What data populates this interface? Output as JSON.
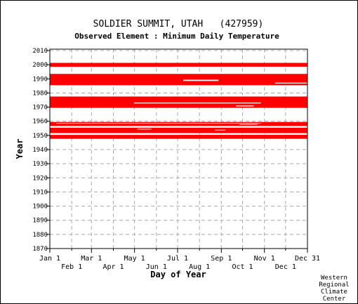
{
  "chart_data": {
    "type": "bar",
    "title": "SOLDIER SUMMIT, UTAH   (427959)",
    "subtitle": "Observed Element : Minimum Daily Temperature",
    "xlabel": "Day of Year",
    "ylabel": "Year",
    "xlim": [
      1,
      366
    ],
    "ylim": [
      1870,
      2011
    ],
    "x_ticks_top": [
      {
        "label": "Jan 1",
        "day": 1
      },
      {
        "label": "Mar 1",
        "day": 60
      },
      {
        "label": "May 1",
        "day": 121
      },
      {
        "label": "Jul 1",
        "day": 182
      },
      {
        "label": "Sep 1",
        "day": 244
      },
      {
        "label": "Nov 1",
        "day": 305
      },
      {
        "label": "Dec 31",
        "day": 366
      }
    ],
    "x_ticks_bottom": [
      {
        "label": "Feb 1",
        "day": 32
      },
      {
        "label": "Apr 1",
        "day": 91
      },
      {
        "label": "Jun 1",
        "day": 152
      },
      {
        "label": "Aug 1",
        "day": 213
      },
      {
        "label": "Oct 1",
        "day": 274
      },
      {
        "label": "Dec 1",
        "day": 335
      }
    ],
    "y_ticks": [
      1870,
      1880,
      1890,
      1900,
      1910,
      1920,
      1930,
      1940,
      1950,
      1960,
      1970,
      1980,
      1990,
      2000,
      2010
    ],
    "grid": true,
    "mark_color": "#ff0000",
    "observed_periods": [
      {
        "y0": 1998.5,
        "y1": 2001.3,
        "d0": 1,
        "d1": 366
      },
      {
        "y0": 1985.5,
        "y1": 1993.5,
        "d0": 1,
        "d1": 366
      },
      {
        "y0": 1969.5,
        "y1": 1977.5,
        "d0": 1,
        "d1": 366
      },
      {
        "y0": 1956.6,
        "y1": 1959.5,
        "d0": 1,
        "d1": 366
      },
      {
        "y0": 1951.6,
        "y1": 1955.5,
        "d0": 1,
        "d1": 366
      },
      {
        "y0": 1947.6,
        "y1": 1950.4,
        "d0": 1,
        "d1": 366
      }
    ],
    "missing_periods": [
      {
        "y0": 1993.7,
        "y1": 1994.6,
        "d0": 22,
        "d1": 366
      },
      {
        "y0": 1998.0,
        "y1": 1998.6,
        "d0": 175,
        "d1": 366
      },
      {
        "y0": 1988.5,
        "y1": 1989.4,
        "d0": 190,
        "d1": 240
      },
      {
        "y0": 1986.7,
        "y1": 1987.3,
        "d0": 320,
        "d1": 366
      },
      {
        "y0": 1977.6,
        "y1": 1978.4,
        "d0": 1,
        "d1": 366
      },
      {
        "y0": 1972.6,
        "y1": 1973.2,
        "d0": 120,
        "d1": 300
      },
      {
        "y0": 1970.5,
        "y1": 1971.1,
        "d0": 265,
        "d1": 290
      },
      {
        "y0": 1958.3,
        "y1": 1958.7,
        "d0": 10,
        "d1": 300
      },
      {
        "y0": 1957.6,
        "y1": 1958.0,
        "d0": 270,
        "d1": 295
      },
      {
        "y0": 1955.5,
        "y1": 1956.6,
        "d0": 1,
        "d1": 366
      },
      {
        "y0": 1954.2,
        "y1": 1954.7,
        "d0": 125,
        "d1": 145
      },
      {
        "y0": 1953.5,
        "y1": 1954.0,
        "d0": 235,
        "d1": 250
      },
      {
        "y0": 1950.4,
        "y1": 1951.6,
        "d0": 1,
        "d1": 185
      },
      {
        "y0": 1950.6,
        "y1": 1951.2,
        "d0": 240,
        "d1": 366
      }
    ]
  },
  "credit_lines": [
    "Western",
    "Regional",
    "Climate",
    "Center"
  ]
}
